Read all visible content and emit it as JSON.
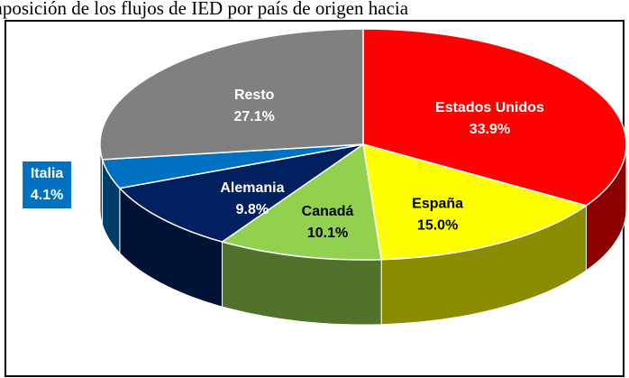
{
  "chart_data": {
    "type": "pie3d",
    "title": "Composición de los flujos de IED por país de origen hacia",
    "categories": [
      "Estados Unidos",
      "España",
      "Canadá",
      "Alemania",
      "Italia",
      "Resto"
    ],
    "values": [
      33.9,
      15.0,
      10.1,
      9.8,
      4.1,
      27.1
    ],
    "value_labels": [
      "33.9%",
      "15.0%",
      "10.1%",
      "9.8%",
      "4.1%",
      "27.1%"
    ],
    "colors": [
      "#ff0000",
      "#ffff00",
      "#92d050",
      "#002060",
      "#0070c0",
      "#808080"
    ]
  }
}
